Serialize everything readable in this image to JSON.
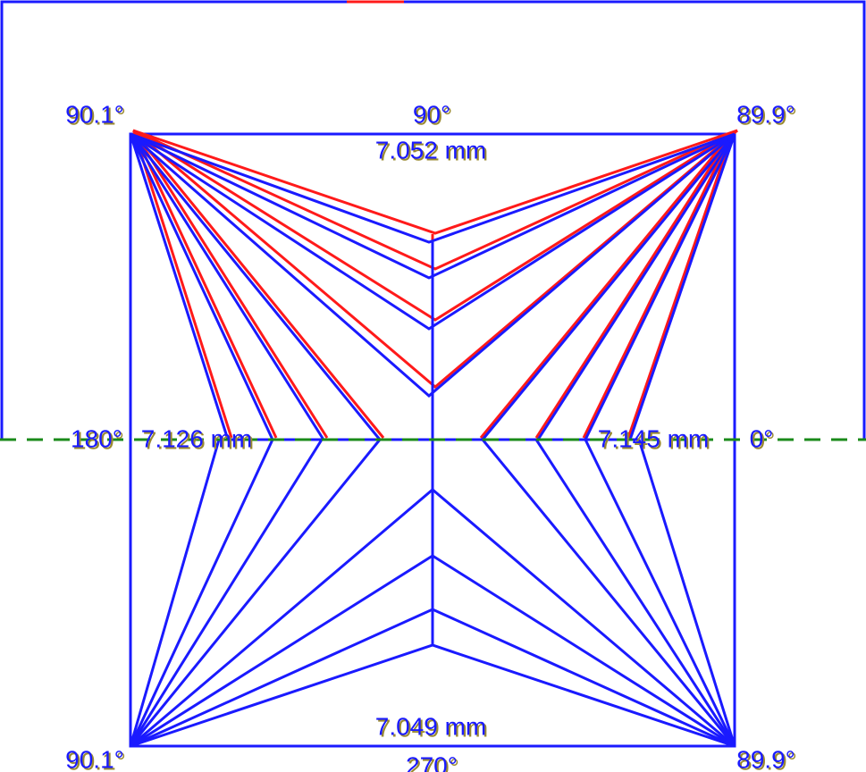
{
  "corners": {
    "top_left": "90.1°",
    "top_right": "89.9°",
    "bottom_left": "90.1°",
    "bottom_right": "89.9°"
  },
  "directions": {
    "top": "90°",
    "left": "180°",
    "right": "0°",
    "bottom": "270°"
  },
  "sides": {
    "top": "7.052 mm",
    "left": "7.126 mm",
    "right": "7.145 mm",
    "bottom": "7.049 mm"
  }
}
